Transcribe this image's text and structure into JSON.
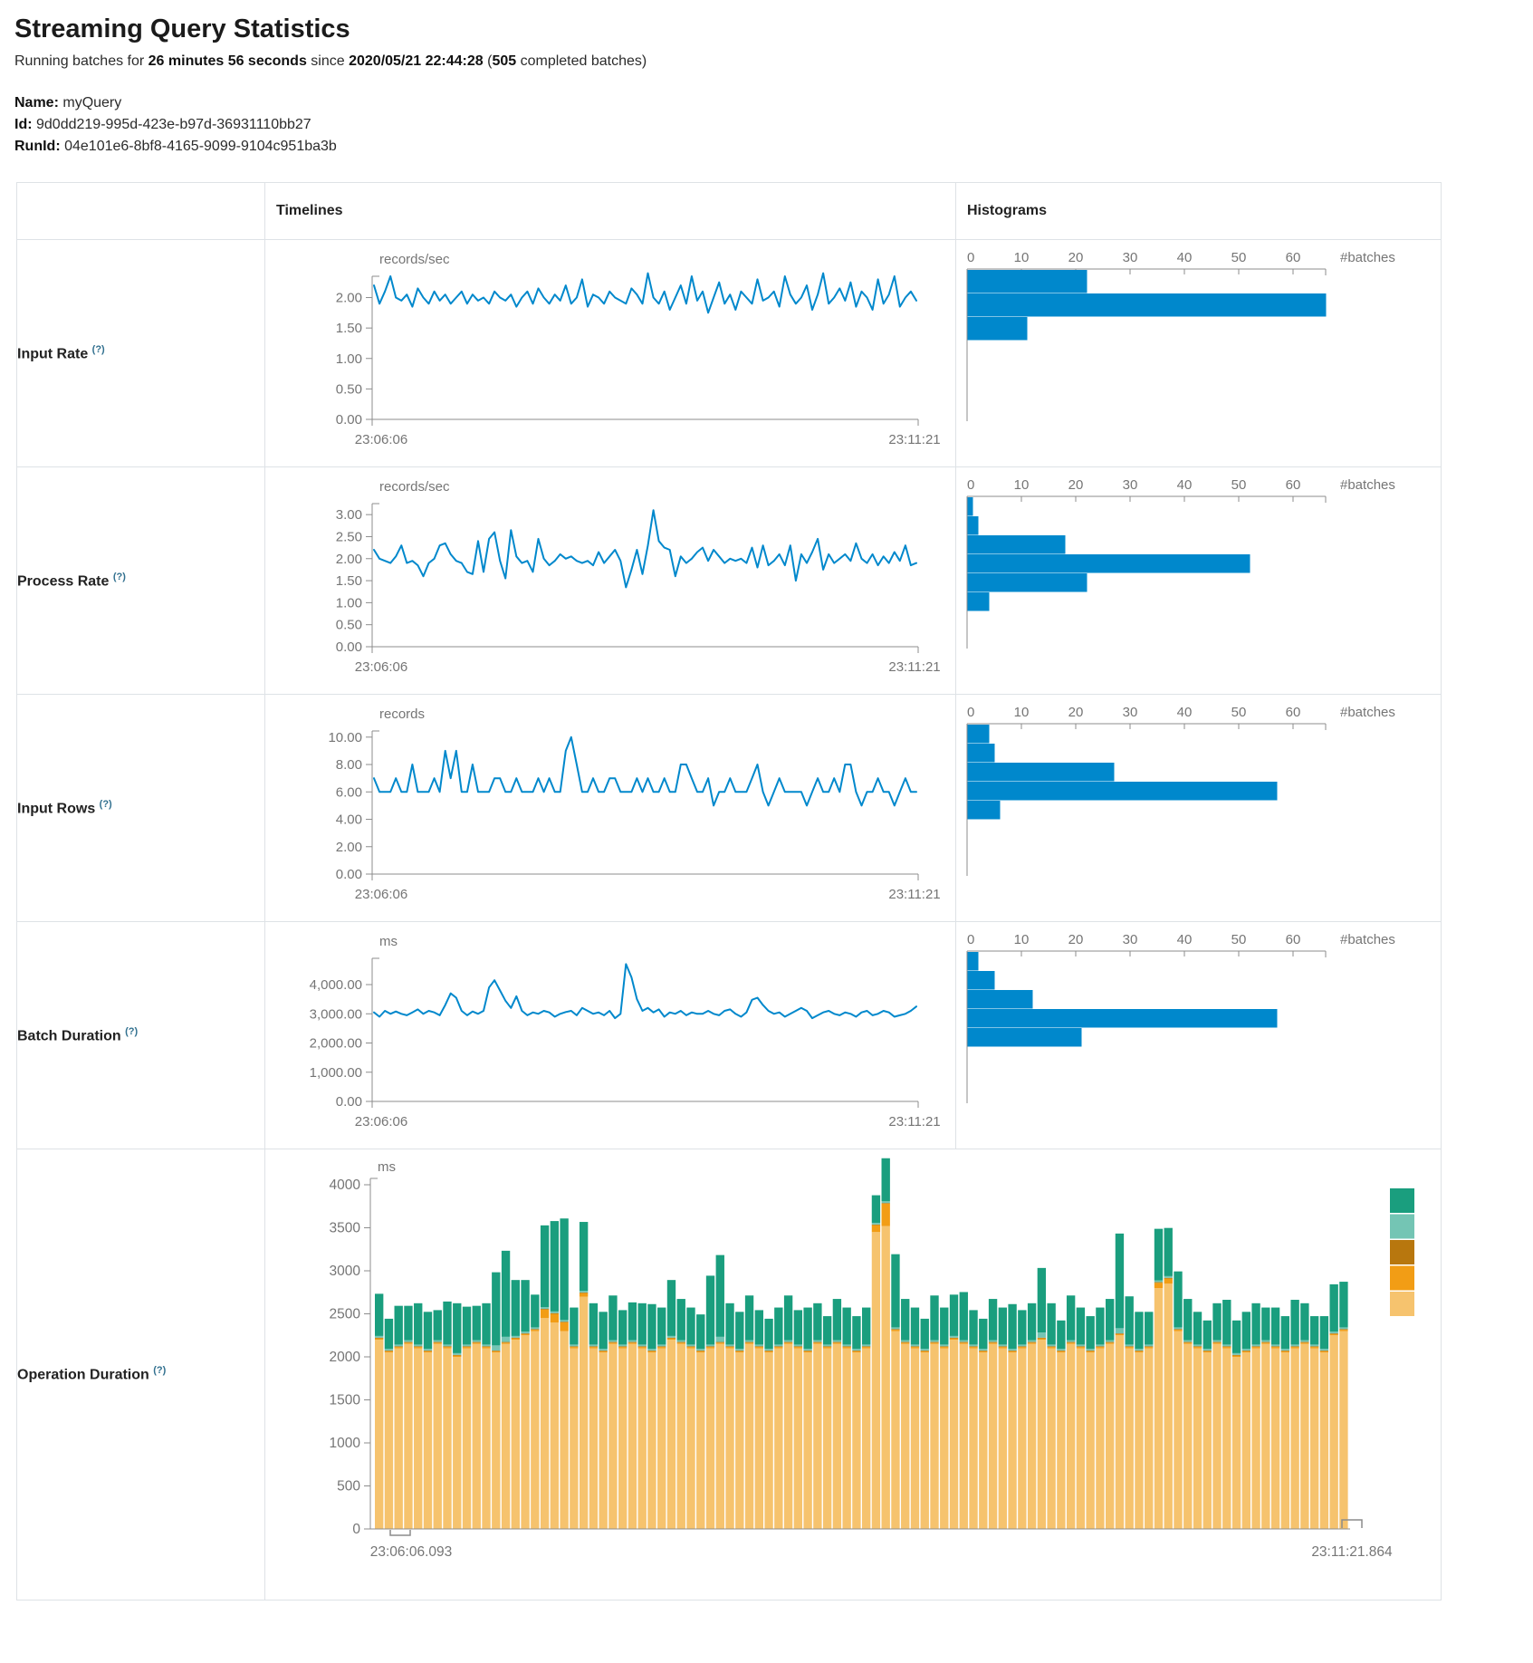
{
  "page": {
    "title": "Streaming Query Statistics",
    "running_prefix": "Running batches for ",
    "duration": "26 minutes 56 seconds",
    "since_text": " since ",
    "start_time": "2020/05/21 22:44:28",
    "paren_open": " (",
    "completed_count": "505",
    "completed_suffix": " completed batches)",
    "name_label": "Name:",
    "name_value": "myQuery",
    "id_label": "Id:",
    "id_value": "9d0dd219-995d-423e-b97d-36931110bb27",
    "runid_label": "RunId:",
    "runid_value": "04e101e6-8bf8-4165-9099-9104c951ba3b"
  },
  "table": {
    "col_timelines": "Timelines",
    "col_histograms": "Histograms",
    "rows": [
      {
        "label": "Input Rate",
        "help": "(?)"
      },
      {
        "label": "Process Rate",
        "help": "(?)"
      },
      {
        "label": "Input Rows",
        "help": "(?)"
      },
      {
        "label": "Batch Duration",
        "help": "(?)"
      },
      {
        "label": "Operation Duration",
        "help": "(?)"
      }
    ]
  },
  "colors": {
    "accent_blue": "#0088cc",
    "axis_gray": "#8c8c8c",
    "tick_text": "#757575",
    "border": "#dee2e6",
    "stack_bottom_to_top": [
      "#f6c36e",
      "#f29d15",
      "#b8770e",
      "#74c5b4",
      "#1a9e7e"
    ],
    "legend_top_to_bottom": [
      "#1a9e7e",
      "#74c5b4",
      "#b8770e",
      "#f29d15",
      "#f6c36e"
    ]
  },
  "chart_data": [
    {
      "id": "input-rate-timeline",
      "type": "line",
      "unit": "records/sec",
      "x_start": "23:06:06",
      "x_end": "23:11:21",
      "ymax": 2.35,
      "yticks": {
        "values": [
          2.0,
          1.5,
          1.0,
          0.5,
          0.0
        ],
        "labels": [
          "2.00",
          "1.50",
          "1.00",
          "0.50",
          "0.00"
        ]
      },
      "values": [
        2.2,
        1.9,
        2.1,
        2.35,
        2.0,
        1.95,
        2.05,
        1.85,
        2.15,
        2.0,
        1.9,
        2.1,
        1.95,
        2.05,
        1.9,
        2.0,
        2.1,
        1.9,
        2.05,
        1.95,
        2.0,
        1.9,
        2.1,
        2.0,
        1.95,
        2.05,
        1.85,
        2.0,
        2.1,
        1.9,
        2.15,
        2.0,
        1.9,
        2.05,
        1.95,
        2.2,
        1.9,
        2.0,
        2.3,
        1.85,
        2.05,
        2.0,
        1.9,
        2.1,
        2.0,
        1.95,
        1.9,
        2.15,
        2.05,
        1.9,
        2.4,
        2.0,
        1.9,
        2.1,
        1.8,
        2.0,
        2.2,
        1.9,
        2.35,
        1.95,
        2.1,
        1.75,
        2.0,
        2.25,
        1.9,
        2.05,
        1.8,
        2.1,
        2.0,
        1.9,
        2.3,
        1.95,
        2.0,
        2.1,
        1.85,
        2.35,
        2.05,
        1.9,
        2.0,
        2.2,
        1.8,
        2.05,
        2.4,
        1.9,
        2.0,
        2.15,
        1.95,
        2.25,
        1.85,
        2.1,
        2.0,
        1.8,
        2.3,
        1.9,
        2.05,
        2.35,
        1.85,
        2.0,
        2.1,
        1.95
      ]
    },
    {
      "id": "input-rate-histogram",
      "type": "bar",
      "orientation": "horizontal",
      "xlabel": "#batches",
      "xticks": [
        0,
        10,
        20,
        30,
        40,
        50,
        60
      ],
      "bin_counts": [
        22,
        66,
        11
      ]
    },
    {
      "id": "process-rate-timeline",
      "type": "line",
      "unit": "records/sec",
      "x_start": "23:06:06",
      "x_end": "23:11:21",
      "ymax": 3.25,
      "yticks": {
        "values": [
          3.0,
          2.5,
          2.0,
          1.5,
          1.0,
          0.5,
          0.0
        ],
        "labels": [
          "3.00",
          "2.50",
          "2.00",
          "1.50",
          "1.00",
          "0.50",
          "0.00"
        ]
      },
      "values": [
        2.2,
        2.0,
        1.95,
        1.9,
        2.05,
        2.3,
        1.9,
        1.95,
        1.85,
        1.6,
        1.9,
        2.0,
        2.3,
        2.35,
        2.1,
        1.95,
        1.9,
        1.7,
        1.65,
        2.4,
        1.7,
        2.45,
        2.6,
        1.95,
        1.55,
        2.65,
        2.05,
        1.9,
        1.95,
        1.7,
        2.45,
        2.0,
        1.85,
        1.95,
        2.1,
        2.0,
        2.05,
        1.95,
        1.9,
        1.95,
        1.85,
        2.15,
        1.9,
        2.05,
        2.2,
        1.95,
        1.35,
        1.75,
        2.2,
        1.65,
        2.3,
        3.1,
        2.4,
        2.25,
        2.2,
        1.6,
        2.05,
        1.9,
        2.0,
        2.15,
        2.25,
        1.95,
        2.2,
        2.05,
        1.9,
        2.0,
        1.95,
        2.0,
        1.9,
        2.25,
        1.8,
        2.3,
        1.85,
        1.95,
        2.1,
        1.85,
        2.3,
        1.5,
        2.1,
        1.9,
        2.15,
        2.45,
        1.75,
        2.1,
        1.9,
        2.0,
        2.1,
        1.95,
        2.35,
        2.0,
        1.9,
        2.1,
        1.85,
        2.05,
        1.9,
        2.15,
        1.95,
        2.3,
        1.85,
        1.9
      ]
    },
    {
      "id": "process-rate-histogram",
      "type": "bar",
      "orientation": "horizontal",
      "xlabel": "#batches",
      "xticks": [
        0,
        10,
        20,
        30,
        40,
        50,
        60
      ],
      "bin_counts": [
        1,
        2,
        18,
        52,
        22,
        4
      ]
    },
    {
      "id": "input-rows-timeline",
      "type": "line",
      "unit": "records",
      "x_start": "23:06:06",
      "x_end": "23:11:21",
      "ymax": 10.45,
      "yticks": {
        "values": [
          10,
          8,
          6,
          4,
          2,
          0
        ],
        "labels": [
          "10.00",
          "8.00",
          "6.00",
          "4.00",
          "2.00",
          "0.00"
        ]
      },
      "values": [
        7,
        6,
        6,
        6,
        7,
        6,
        6,
        8,
        6,
        6,
        6,
        7,
        6,
        9,
        7,
        9,
        6,
        6,
        8,
        6,
        6,
        6,
        7,
        7,
        6,
        6,
        7,
        6,
        6,
        6,
        7,
        6,
        7,
        6,
        6,
        9,
        10,
        8,
        6,
        6,
        7,
        6,
        6,
        7,
        7,
        6,
        6,
        6,
        7,
        6,
        7,
        6,
        6,
        7,
        6,
        6,
        8,
        8,
        7,
        6,
        6,
        7,
        5,
        6,
        6,
        7,
        6,
        6,
        6,
        7,
        8,
        6,
        5,
        6,
        7,
        6,
        6,
        6,
        6,
        5,
        6,
        7,
        6,
        6,
        7,
        6,
        8,
        8,
        6,
        5,
        6,
        6,
        7,
        6,
        6,
        5,
        6,
        7,
        6,
        6
      ]
    },
    {
      "id": "input-rows-histogram",
      "type": "bar",
      "orientation": "horizontal",
      "xlabel": "#batches",
      "xticks": [
        0,
        10,
        20,
        30,
        40,
        50,
        60
      ],
      "bin_counts": [
        4,
        5,
        27,
        57,
        6
      ]
    },
    {
      "id": "batch-duration-timeline",
      "type": "line",
      "unit": "ms",
      "x_start": "23:06:06",
      "x_end": "23:11:21",
      "ymax": 4900,
      "yticks": {
        "values": [
          4000,
          3000,
          2000,
          1000,
          0
        ],
        "labels": [
          "4,000.00",
          "3,000.00",
          "2,000.00",
          "1,000.00",
          "0.00"
        ]
      },
      "values": [
        3050,
        2900,
        3100,
        3000,
        3080,
        3000,
        2950,
        3050,
        3150,
        3000,
        3100,
        3050,
        2950,
        3300,
        3700,
        3550,
        3100,
        2950,
        3080,
        3000,
        3100,
        3900,
        4150,
        3800,
        3450,
        3200,
        3600,
        3100,
        2950,
        3050,
        3000,
        3100,
        3050,
        2900,
        3000,
        3060,
        3100,
        2950,
        3200,
        3100,
        3000,
        3050,
        2950,
        3100,
        2850,
        3000,
        4700,
        4250,
        3500,
        3100,
        3200,
        3050,
        3150,
        2900,
        3050,
        3000,
        3100,
        2950,
        3050,
        3000,
        3000,
        3100,
        3000,
        2950,
        3100,
        3150,
        3000,
        2900,
        3050,
        3480,
        3550,
        3300,
        3100,
        3000,
        3050,
        2900,
        3000,
        3100,
        3200,
        3100,
        2850,
        2950,
        3050,
        3100,
        3000,
        2950,
        3050,
        3000,
        2900,
        3050,
        3100,
        2950,
        3000,
        3100,
        3050,
        2900,
        2950,
        3000,
        3100,
        3250
      ]
    },
    {
      "id": "batch-duration-histogram",
      "type": "bar",
      "orientation": "horizontal",
      "xlabel": "#batches",
      "xticks": [
        0,
        10,
        20,
        30,
        40,
        50,
        60
      ],
      "bin_counts": [
        2,
        5,
        12,
        57,
        21
      ]
    },
    {
      "id": "operation-duration-stacked",
      "type": "bar-stacked",
      "unit": "ms",
      "x_start": "23:06:06.093",
      "x_end": "23:11:21.864",
      "yticks": {
        "values": [
          4000,
          3500,
          3000,
          2500,
          2000,
          1500,
          1000,
          500,
          0
        ],
        "labels": [
          "4000",
          "3500",
          "3000",
          "2500",
          "2000",
          "1500",
          "1000",
          "500",
          "0"
        ]
      },
      "ymax_scale": 4000,
      "legend_colors": [
        "#1a9e7e",
        "#74c5b4",
        "#b8770e",
        "#f29d15",
        "#f6c36e"
      ],
      "series": [
        {
          "name": "bottom-light-orange",
          "color": "#f6c36e",
          "values": [
            2200,
            2050,
            2100,
            2150,
            2100,
            2050,
            2150,
            2100,
            2000,
            2100,
            2150,
            2100,
            2050,
            2150,
            2200,
            2250,
            2300,
            2450,
            2400,
            2300,
            2100,
            2700,
            2100,
            2050,
            2150,
            2100,
            2150,
            2100,
            2050,
            2100,
            2200,
            2150,
            2100,
            2050,
            2100,
            2150,
            2100,
            2050,
            2150,
            2100,
            2050,
            2100,
            2150,
            2100,
            2050,
            2150,
            2100,
            2150,
            2100,
            2050,
            2100,
            3450,
            3520,
            2300,
            2150,
            2100,
            2050,
            2150,
            2100,
            2200,
            2150,
            2100,
            2050,
            2150,
            2100,
            2050,
            2100,
            2150,
            2200,
            2100,
            2050,
            2150,
            2100,
            2050,
            2100,
            2150,
            2250,
            2100,
            2050,
            2100,
            2800,
            2850,
            2300,
            2150,
            2100,
            2050,
            2150,
            2100,
            2000,
            2050,
            2100,
            2150,
            2100,
            2050,
            2100,
            2150,
            2100,
            2050,
            2250,
            2300
          ]
        },
        {
          "name": "orange",
          "color": "#f29d15",
          "values": [
            15,
            15,
            15,
            15,
            15,
            15,
            15,
            15,
            15,
            15,
            15,
            15,
            15,
            15,
            15,
            15,
            15,
            100,
            100,
            100,
            15,
            40,
            15,
            15,
            15,
            15,
            15,
            15,
            15,
            15,
            15,
            15,
            15,
            15,
            15,
            15,
            15,
            15,
            15,
            15,
            15,
            15,
            15,
            15,
            15,
            15,
            15,
            15,
            15,
            15,
            15,
            80,
            260,
            15,
            15,
            15,
            15,
            15,
            15,
            15,
            15,
            15,
            15,
            15,
            15,
            15,
            15,
            15,
            15,
            15,
            15,
            15,
            15,
            15,
            15,
            15,
            15,
            15,
            15,
            15,
            60,
            60,
            15,
            15,
            15,
            15,
            15,
            15,
            15,
            15,
            15,
            15,
            15,
            15,
            15,
            15,
            15,
            15,
            15,
            15
          ]
        },
        {
          "name": "dark-orange",
          "color": "#b8770e",
          "values": 8
        },
        {
          "name": "light-teal",
          "color": "#74c5b4",
          "values": [
            20,
            20,
            20,
            20,
            20,
            20,
            20,
            20,
            20,
            20,
            20,
            20,
            60,
            60,
            20,
            20,
            20,
            20,
            20,
            20,
            20,
            20,
            20,
            20,
            20,
            20,
            20,
            20,
            20,
            20,
            20,
            20,
            20,
            20,
            20,
            60,
            20,
            20,
            20,
            20,
            20,
            20,
            20,
            20,
            20,
            20,
            20,
            20,
            20,
            20,
            20,
            20,
            20,
            20,
            20,
            20,
            20,
            20,
            20,
            20,
            20,
            20,
            20,
            20,
            20,
            20,
            20,
            20,
            60,
            20,
            20,
            20,
            20,
            20,
            20,
            20,
            60,
            20,
            20,
            20,
            20,
            20,
            20,
            20,
            20,
            20,
            20,
            20,
            20,
            20,
            20,
            20,
            20,
            20,
            20,
            20,
            20,
            20,
            20,
            20
          ]
        },
        {
          "name": "top-teal",
          "color": "#1a9e7e",
          "values": [
            490,
            350,
            450,
            400,
            480,
            430,
            350,
            500,
            580,
            440,
            400,
            480,
            850,
            1000,
            650,
            600,
            380,
            950,
            1050,
            1180,
            430,
            800,
            480,
            430,
            520,
            400,
            440,
            480,
            520,
            430,
            650,
            480,
            430,
            400,
            800,
            950,
            480,
            430,
            520,
            400,
            350,
            430,
            520,
            400,
            480,
            430,
            330,
            480,
            430,
            380,
            430,
            320,
            500,
            850,
            480,
            430,
            350,
            520,
            430,
            480,
            560,
            400,
            350,
            480,
            430,
            520,
            400,
            430,
            750,
            480,
            330,
            520,
            430,
            380,
            430,
            480,
            1100,
            560,
            430,
            380,
            600,
            560,
            650,
            480,
            380,
            330,
            430,
            520,
            380,
            430,
            480,
            380,
            430,
            380,
            520,
            430,
            330,
            380,
            550,
            530
          ]
        }
      ]
    }
  ]
}
